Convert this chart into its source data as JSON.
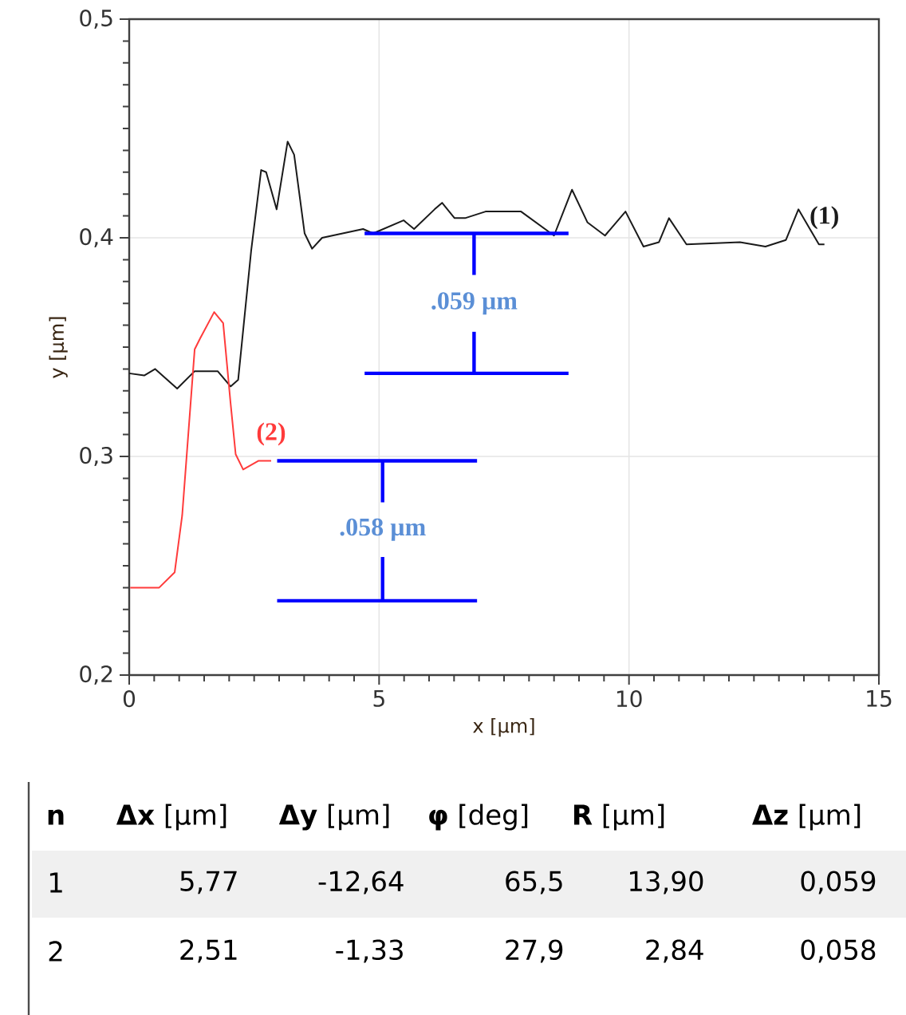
{
  "chart_data": {
    "type": "line",
    "xlabel": "x [µm]",
    "ylabel": "y [µm]",
    "xlim": [
      0,
      15
    ],
    "ylim": [
      0.2,
      0.5
    ],
    "xticks": [
      0,
      5,
      10,
      15
    ],
    "yticks": [
      {
        "value": 0.2,
        "label": "0,2"
      },
      {
        "value": 0.3,
        "label": "0,3"
      },
      {
        "value": 0.4,
        "label": "0,4"
      },
      {
        "value": 0.5,
        "label": "0,5"
      }
    ],
    "grid": true,
    "marker": "none",
    "line_style": "solid",
    "series": [
      {
        "name": "(1)",
        "color": "#1a1a1a",
        "x": [
          0,
          0.3,
          0.52,
          0.96,
          1.31,
          1.77,
          2.03,
          2.18,
          2.44,
          2.64,
          2.74,
          2.95,
          3.17,
          3.3,
          3.51,
          3.66,
          3.86,
          4.68,
          4.88,
          5.49,
          5.7,
          6.11,
          6.26,
          6.51,
          6.72,
          7.13,
          7.84,
          8.5,
          8.86,
          9.17,
          9.52,
          9.93,
          10.29,
          10.6,
          10.8,
          11.15,
          12.22,
          12.73,
          13.14,
          13.39,
          13.8,
          13.91
        ],
        "values": [
          0.338,
          0.337,
          0.34,
          0.331,
          0.339,
          0.339,
          0.332,
          0.335,
          0.394,
          0.431,
          0.43,
          0.413,
          0.444,
          0.438,
          0.402,
          0.395,
          0.4,
          0.404,
          0.402,
          0.408,
          0.404,
          0.413,
          0.416,
          0.409,
          0.409,
          0.412,
          0.412,
          0.401,
          0.422,
          0.407,
          0.401,
          0.412,
          0.396,
          0.398,
          0.409,
          0.397,
          0.398,
          0.396,
          0.399,
          0.413,
          0.397,
          0.397
        ]
      },
      {
        "name": "(2)",
        "color": "#ff3b3b",
        "x": [
          0.02,
          0.6,
          0.91,
          1.06,
          1.31,
          1.42,
          1.7,
          1.88,
          2.03,
          2.13,
          2.28,
          2.59,
          2.84
        ],
        "values": [
          0.24,
          0.24,
          0.247,
          0.273,
          0.349,
          0.354,
          0.366,
          0.361,
          0.324,
          0.301,
          0.294,
          0.298,
          0.298
        ]
      },
      {
        "color": "#0000ff",
        "x": [
          4.71,
          8.79
        ],
        "values": [
          0.402,
          0.402
        ]
      },
      {
        "color": "#0000ff",
        "x": [
          4.71,
          8.79
        ],
        "values": [
          0.338,
          0.338
        ]
      },
      {
        "color": "#0000ff",
        "x": [
          6.9,
          6.9
        ],
        "values": [
          0.402,
          0.383
        ]
      },
      {
        "color": "#0000ff",
        "x": [
          6.9,
          6.9
        ],
        "values": [
          0.357,
          0.338
        ]
      },
      {
        "color": "#0000ff",
        "x": [
          2.96,
          6.96
        ],
        "values": [
          0.298,
          0.298
        ]
      },
      {
        "color": "#0000ff",
        "x": [
          2.96,
          6.96
        ],
        "values": [
          0.234,
          0.234
        ]
      },
      {
        "color": "#0000ff",
        "x": [
          5.07,
          5.07
        ],
        "values": [
          0.298,
          0.279
        ]
      },
      {
        "color": "#0000ff",
        "x": [
          5.07,
          5.07
        ],
        "values": [
          0.254,
          0.234
        ]
      }
    ],
    "annotations": [
      ".059 µm",
      ".058 µm",
      "**n**",
      "**Δx** [µm]",
      "**Δy** [µm]",
      "**φ** [deg]",
      "**R** [µm]",
      "**Δz** [µm]",
      "1",
      "5,77",
      "-12,64",
      "65,5",
      "13,90",
      "0,059",
      "2",
      "2,51",
      "-1,33",
      "27,9",
      "2,84",
      "0,058"
    ]
  }
}
